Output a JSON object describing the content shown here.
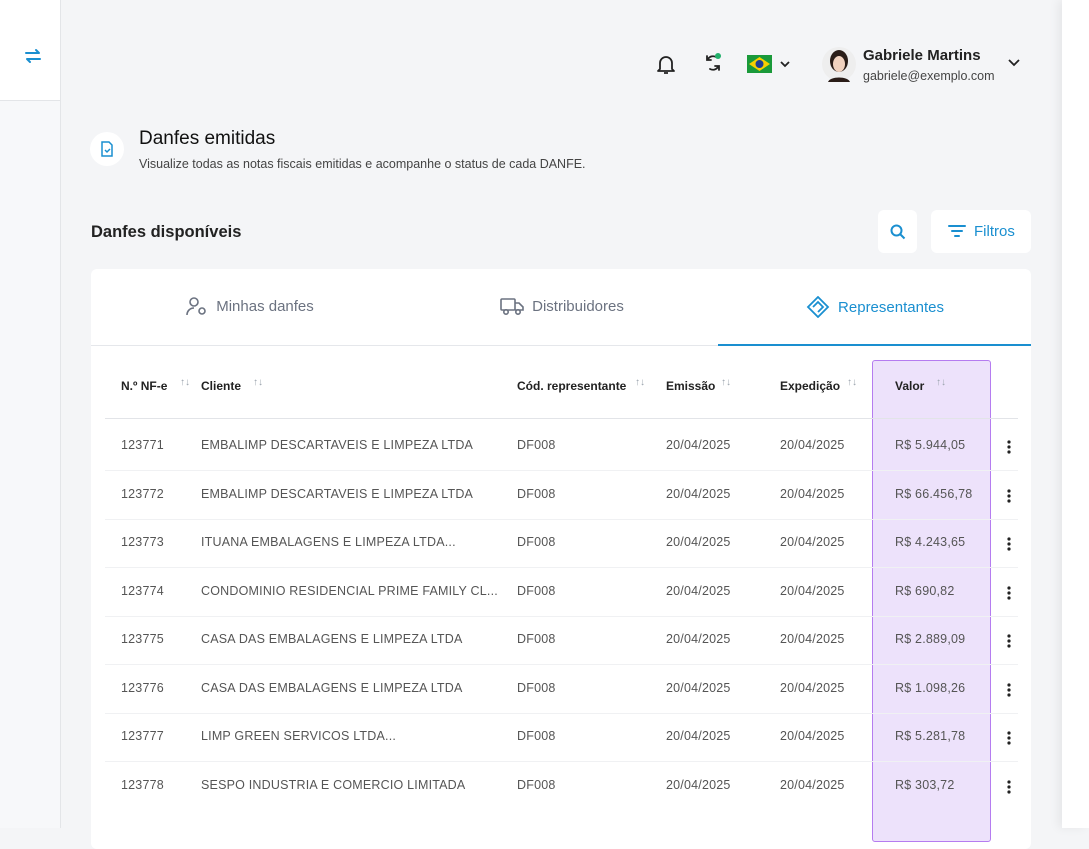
{
  "header": {
    "user_name": "Gabriele Martins",
    "user_email": "gabriele@exemplo.com"
  },
  "page": {
    "title": "Danfes emitidas",
    "subtitle": "Visualize todas as notas fiscais emitidas e acompanhe o status de cada DANFE."
  },
  "section": {
    "title": "Danfes disponíveis",
    "filter_button": "Filtros"
  },
  "tabs": [
    "Minhas danfes",
    "Distribuidores",
    "Representantes"
  ],
  "table": {
    "columns": [
      "N.º NF-e",
      "Cliente",
      "Cód. representante",
      "Emissão",
      "Expedição",
      "Valor"
    ],
    "rows": [
      [
        "123771",
        "EMBALIMP DESCARTAVEIS E LIMPEZA LTDA",
        "DF008",
        "20/04/2025",
        "20/04/2025",
        "R$ 5.944,05"
      ],
      [
        "123772",
        "EMBALIMP DESCARTAVEIS E LIMPEZA LTDA",
        "DF008",
        "20/04/2025",
        "20/04/2025",
        "R$ 66.456,78"
      ],
      [
        "123773",
        "ITUANA EMBALAGENS E LIMPEZA LTDA...",
        "DF008",
        "20/04/2025",
        "20/04/2025",
        "R$ 4.243,65"
      ],
      [
        "123774",
        "CONDOMINIO RESIDENCIAL PRIME FAMILY CL...",
        "DF008",
        "20/04/2025",
        "20/04/2025",
        "R$ 690,82"
      ],
      [
        "123775",
        "CASA DAS EMBALAGENS E LIMPEZA LTDA",
        "DF008",
        "20/04/2025",
        "20/04/2025",
        "R$ 2.889,09"
      ],
      [
        "123776",
        "CASA DAS EMBALAGENS E LIMPEZA LTDA",
        "DF008",
        "20/04/2025",
        "20/04/2025",
        "R$ 1.098,26"
      ],
      [
        "123777",
        "LIMP GREEN SERVICOS LTDA...",
        "DF008",
        "20/04/2025",
        "20/04/2025",
        "R$ 5.281,78"
      ],
      [
        "123778",
        "SESPO INDUSTRIA E COMERCIO LIMITADA",
        "DF008",
        "20/04/2025",
        "20/04/2025",
        "R$ 303,72"
      ]
    ]
  }
}
